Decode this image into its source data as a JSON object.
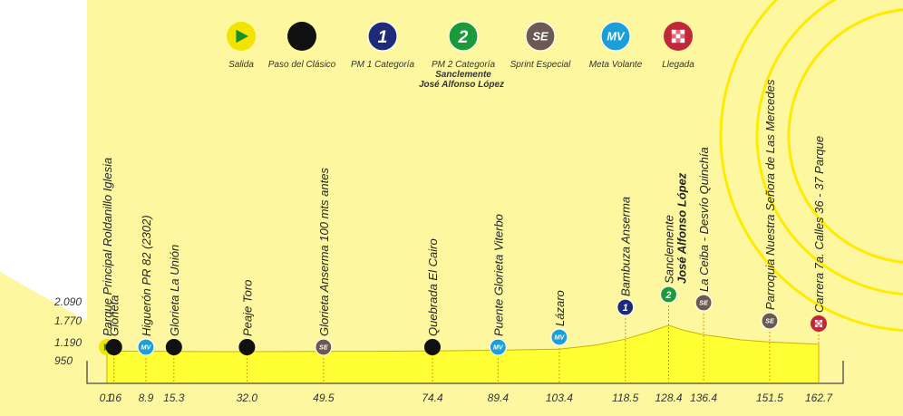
{
  "legend": [
    {
      "key": "salida",
      "label": "Salida",
      "icon": "start-triangle-icon",
      "color": "#f2e400",
      "text": ""
    },
    {
      "key": "clasico",
      "label": "Paso del Clásico",
      "icon": "black-dot-icon",
      "color": "#111111",
      "text": ""
    },
    {
      "key": "pm1",
      "label": "PM 1 Categoría",
      "icon": "pm1-category-icon",
      "color": "#1f2a78",
      "text": "1"
    },
    {
      "key": "pm2",
      "label": "PM 2 Categoría",
      "icon": "pm2-category-icon",
      "color": "#1a9b3a",
      "text": "2",
      "sub1": "Sanclemente",
      "sub2": "José Alfonso López"
    },
    {
      "key": "se",
      "label": "Sprint Especial",
      "icon": "sprint-special-icon",
      "color": "#6b5a52",
      "text": "SE"
    },
    {
      "key": "mv",
      "label": "Meta Volante",
      "icon": "meta-volante-icon",
      "color": "#1a9fd6",
      "text": "MV"
    },
    {
      "key": "llegada",
      "label": "Llegada",
      "icon": "finish-flag-icon",
      "color": "#c0283a",
      "text": ""
    }
  ],
  "colors": {
    "background": "#fdf7a0",
    "profile_fill": "#ffff33",
    "profile_stroke": "#c9b400",
    "arc": "#ffeb00"
  },
  "chart_data": {
    "type": "area",
    "title": "",
    "xlabel": "",
    "ylabel": "",
    "xlim": [
      0,
      162.7
    ],
    "ylim": [
      950,
      2090
    ],
    "y_ticks": [
      "2.090",
      "1.770",
      "1.190",
      "950"
    ],
    "y_tick_values": [
      2090,
      1770,
      1190,
      950
    ],
    "profile": [
      [
        0,
        1190
      ],
      [
        10,
        1185
      ],
      [
        25,
        1175
      ],
      [
        40,
        1178
      ],
      [
        60,
        1185
      ],
      [
        74.4,
        1195
      ],
      [
        89.4,
        1215
      ],
      [
        103.4,
        1245
      ],
      [
        112,
        1360
      ],
      [
        118.5,
        1520
      ],
      [
        124,
        1720
      ],
      [
        128.4,
        1900
      ],
      [
        132,
        1760
      ],
      [
        136.4,
        1640
      ],
      [
        145,
        1500
      ],
      [
        151.5,
        1440
      ],
      [
        162.7,
        1380
      ]
    ],
    "points": [
      {
        "km": 0.0,
        "km_label": "0.0",
        "marker": "salida",
        "label": "Parque Principal Roldanillo Iglesia",
        "label2": ""
      },
      {
        "km": 1.6,
        "km_label": "1.6",
        "marker": "clasico",
        "label": "Glorieta",
        "label2": ""
      },
      {
        "km": 8.9,
        "km_label": "8.9",
        "marker": "mv",
        "label": "Higuerón PR 82 (2302)",
        "label2": ""
      },
      {
        "km": 15.3,
        "km_label": "15.3",
        "marker": "clasico",
        "label": "Glorieta La Unión",
        "label2": ""
      },
      {
        "km": 32.0,
        "km_label": "32.0",
        "marker": "clasico",
        "label": "Peaje Toro",
        "label2": ""
      },
      {
        "km": 49.5,
        "km_label": "49.5",
        "marker": "se",
        "label": "Glorieta Anserma  100 mts antes",
        "label2": ""
      },
      {
        "km": 74.4,
        "km_label": "74.4",
        "marker": "clasico",
        "label": "Quebrada El Cairo",
        "label2": ""
      },
      {
        "km": 89.4,
        "km_label": "89.4",
        "marker": "mv",
        "label": "Puente Glorieta Viterbo",
        "label2": ""
      },
      {
        "km": 103.4,
        "km_label": "103.4",
        "marker": "mv",
        "label": "Lázaro",
        "label2": ""
      },
      {
        "km": 118.5,
        "km_label": "118.5",
        "marker": "pm1",
        "label": "Bambuza Anserma",
        "label2": ""
      },
      {
        "km": 128.4,
        "km_label": "128.4",
        "marker": "pm2",
        "label": "Sanclemente",
        "label2": "José Alfonso López"
      },
      {
        "km": 136.4,
        "km_label": "136.4",
        "marker": "se",
        "label": "La Ceiba - Desvío Quinchía",
        "label2": ""
      },
      {
        "km": 151.5,
        "km_label": "151.5",
        "marker": "se",
        "label": "Parroquia Nuestra Señora de Las Mercedes",
        "label2": ""
      },
      {
        "km": 162.7,
        "km_label": "162.7",
        "marker": "llegada",
        "label": "Carrera 7a. Calles 36 - 37 Parque",
        "label2": ""
      }
    ]
  }
}
